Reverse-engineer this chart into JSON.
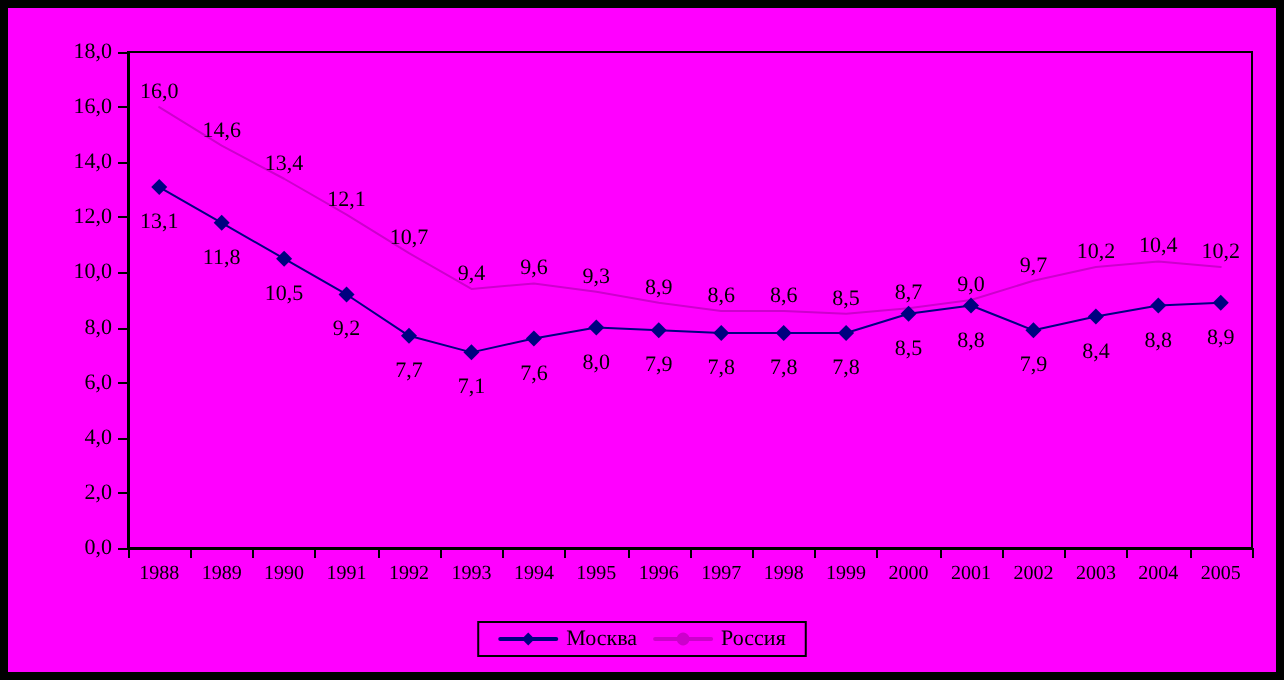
{
  "chart_data": {
    "type": "line",
    "categories": [
      "1988",
      "1989",
      "1990",
      "1991",
      "1992",
      "1993",
      "1994",
      "1995",
      "1996",
      "1997",
      "1998",
      "1999",
      "2000",
      "2001",
      "2002",
      "2003",
      "2004",
      "2005"
    ],
    "series": [
      {
        "name": "Москва",
        "color": "#000080",
        "marker": "diamond",
        "values": [
          13.1,
          11.8,
          10.5,
          9.2,
          7.7,
          7.1,
          7.6,
          8.0,
          7.9,
          7.8,
          7.8,
          7.8,
          8.5,
          8.8,
          7.9,
          8.4,
          8.8,
          8.9
        ],
        "value_labels": [
          "13,1",
          "11,8",
          "10,5",
          "9,2",
          "7,7",
          "7,1",
          "7,6",
          "8,0",
          "7,9",
          "7,8",
          "7,8",
          "7,8",
          "8,5",
          "8,8",
          "7,9",
          "8,4",
          "8,8",
          "8,9"
        ]
      },
      {
        "name": "Россия",
        "color": "#cc00cc",
        "marker": "none",
        "values": [
          16.0,
          14.6,
          13.4,
          12.1,
          10.7,
          9.4,
          9.6,
          9.3,
          8.9,
          8.6,
          8.6,
          8.5,
          8.7,
          9.0,
          9.7,
          10.2,
          10.4,
          10.2
        ],
        "value_labels": [
          "16,0",
          "14,6",
          "13,4",
          "12,1",
          "10,7",
          "9,4",
          "9,6",
          "9,3",
          "8,9",
          "8,6",
          "8,6",
          "8,5",
          "8,7",
          "9,0",
          "9,7",
          "10,2",
          "10,4",
          "10,2"
        ]
      }
    ],
    "ylim": [
      0,
      18
    ],
    "yticks": [
      {
        "value": 0,
        "label": "0,0"
      },
      {
        "value": 2,
        "label": "2,0"
      },
      {
        "value": 4,
        "label": "4,0"
      },
      {
        "value": 6,
        "label": "6,0"
      },
      {
        "value": 8,
        "label": "8,0"
      },
      {
        "value": 10,
        "label": "10,0"
      },
      {
        "value": 12,
        "label": "12,0"
      },
      {
        "value": 14,
        "label": "14,0"
      },
      {
        "value": 16,
        "label": "16,0"
      },
      {
        "value": 18,
        "label": "18,0"
      }
    ],
    "grid": false,
    "legend": "bottom",
    "line_style": "solid"
  }
}
